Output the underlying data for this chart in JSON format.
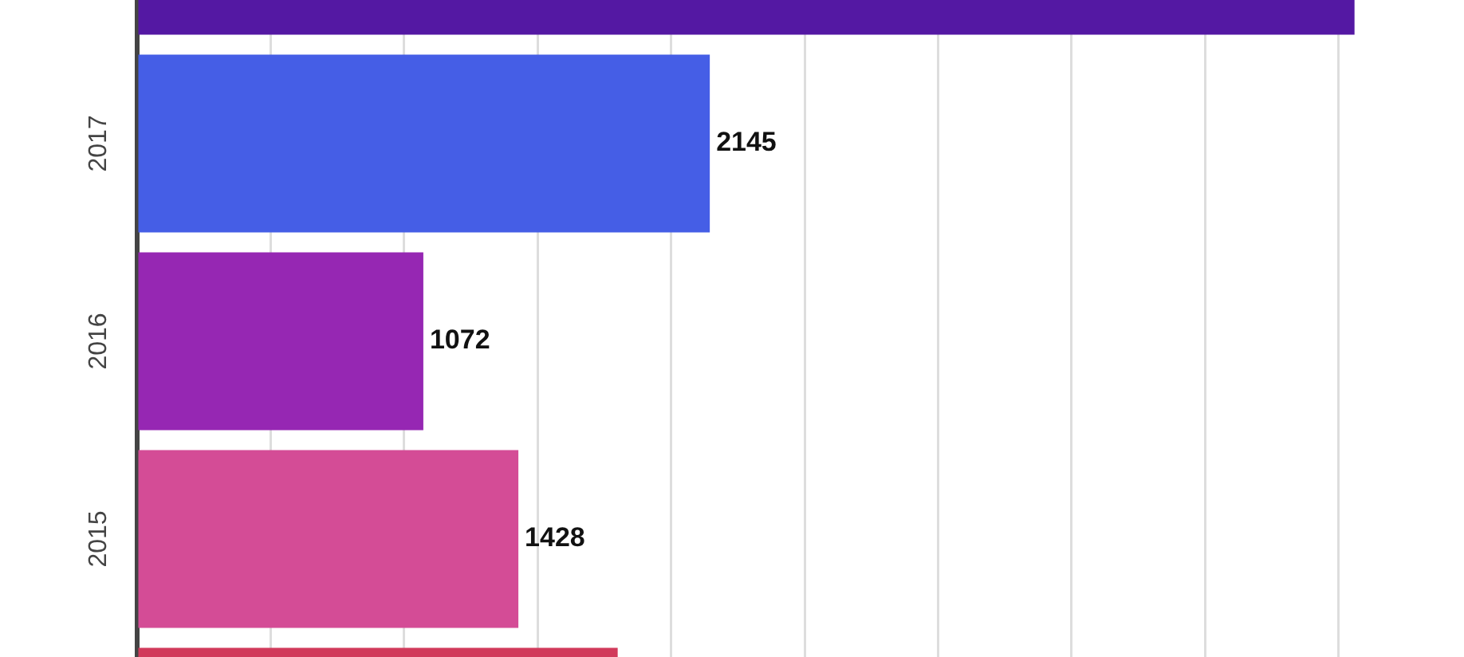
{
  "chart_data": {
    "type": "bar",
    "orientation": "horizontal",
    "categories": [
      null,
      "2017",
      "2016",
      "2015",
      null
    ],
    "values": [
      4560,
      2145,
      1072,
      1428,
      1800
    ],
    "colors": [
      "#5418a3",
      "#455ee6",
      "#9627b3",
      "#d44c96",
      "#d13a5b"
    ],
    "value_labels": [
      null,
      "2145",
      "1072",
      "1428",
      null
    ],
    "tick_labels": "y",
    "grid": "x",
    "legend": false
  }
}
